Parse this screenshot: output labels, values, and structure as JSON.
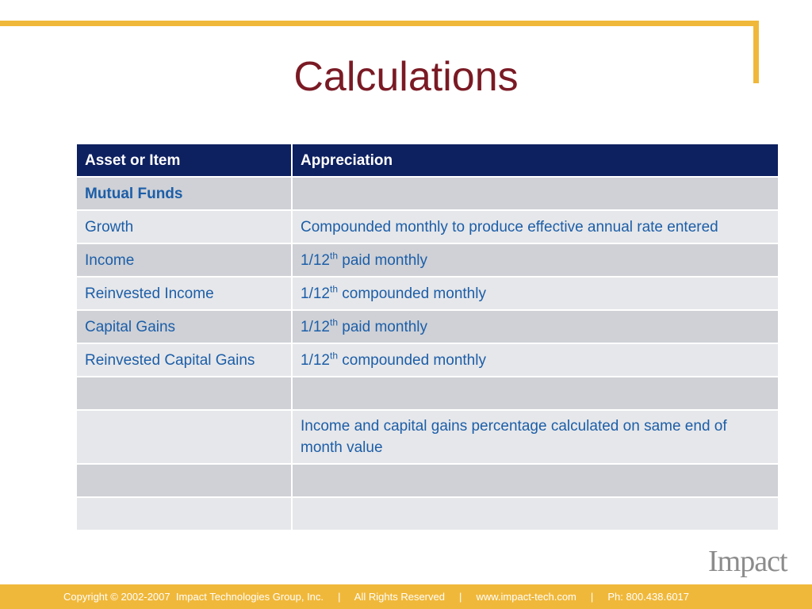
{
  "slide": {
    "title": "Calculations"
  },
  "table": {
    "headers": [
      "Asset or Item",
      "Appreciation"
    ],
    "section_label": "Mutual Funds",
    "rows": [
      {
        "item": "Growth",
        "text": "Compounded monthly to produce effective annual rate entered"
      },
      {
        "item": "Income",
        "prefix": "1/12",
        "sup": "th",
        "suffix": " paid monthly"
      },
      {
        "item": "Reinvested Income",
        "prefix": "1/12",
        "sup": "th",
        "suffix": " compounded monthly"
      },
      {
        "item": "Capital Gains",
        "prefix": "1/12",
        "sup": "th",
        "suffix": " paid monthly"
      },
      {
        "item": "Reinvested Capital Gains",
        "prefix": "1/12",
        "sup": "th",
        "suffix": " compounded monthly"
      }
    ],
    "note": "Income and capital gains percentage calculated on same end of month value"
  },
  "logo": {
    "text": "Impact"
  },
  "footer": {
    "text": "Copyright © 2002-2007  Impact Technologies Group, Inc.     |     All Rights Reserved     |     www.impact-tech.com     |     Ph: 800.438.6017"
  },
  "colors": {
    "accent": "#f0b83a",
    "title": "#7a1a24",
    "header_bg": "#0d2060",
    "text_blue": "#1c5ea8"
  }
}
